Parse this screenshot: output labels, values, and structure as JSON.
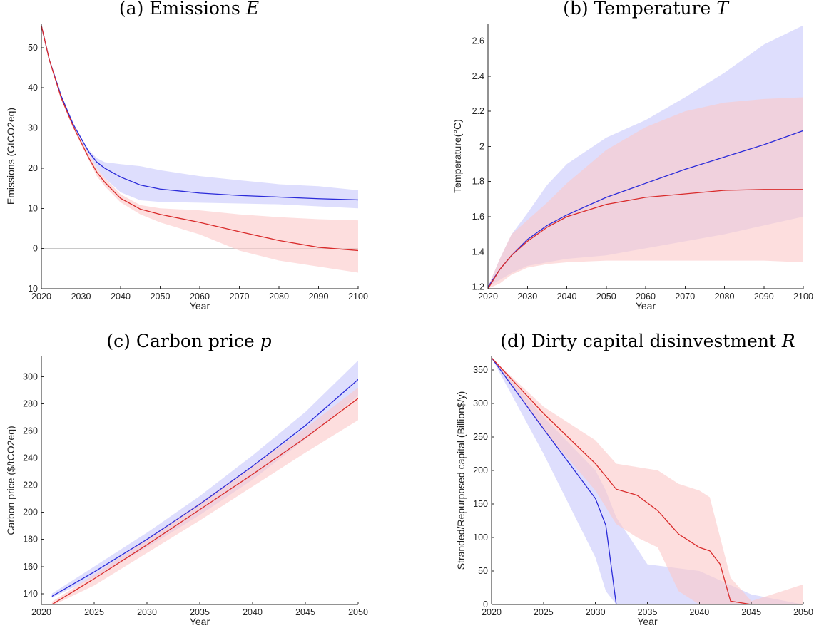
{
  "colors": {
    "series_a": "#2b2bd9",
    "series_b": "#d92b2b",
    "band_a": "#c9c9fb",
    "band_b": "#fbcaca"
  },
  "chart_data": [
    {
      "id": "a",
      "type": "line",
      "title_prefix": "(a) Emissions ",
      "title_symbol": "E",
      "xlabel": "Year",
      "ylabel": "Emissions (GtCO2eq)",
      "xlim": [
        2020,
        2100
      ],
      "ylim": [
        -10,
        56
      ],
      "xticks": [
        2020,
        2030,
        2040,
        2050,
        2060,
        2070,
        2080,
        2090,
        2100
      ],
      "yticks": [
        -10,
        0,
        10,
        20,
        30,
        40,
        50
      ],
      "zero_line": true,
      "series": [
        {
          "x": [
            2020,
            2022,
            2025,
            2028,
            2030,
            2032,
            2034,
            2036,
            2040,
            2045,
            2050,
            2060,
            2070,
            2080,
            2090,
            2100
          ],
          "y": [
            55.5,
            47,
            38,
            31,
            27.5,
            24,
            21.5,
            20,
            17.8,
            15.8,
            14.8,
            13.8,
            13.2,
            12.8,
            12.4,
            12.1
          ],
          "upper": [
            55.5,
            47,
            38,
            31,
            27.5,
            24.5,
            22.5,
            21.5,
            21,
            20.5,
            19.5,
            18,
            17,
            16,
            15.5,
            14.5
          ],
          "lower": [
            55.5,
            47,
            38,
            31,
            27,
            23.5,
            20,
            17.5,
            14,
            12,
            11.6,
            11.4,
            11.2,
            11,
            10.5,
            10
          ]
        },
        {
          "x": [
            2020,
            2022,
            2025,
            2028,
            2030,
            2032,
            2034,
            2036,
            2040,
            2045,
            2050,
            2060,
            2070,
            2080,
            2090,
            2100
          ],
          "y": [
            55.5,
            47,
            37.5,
            30.5,
            26.5,
            22.5,
            19,
            16.5,
            12.5,
            9.8,
            8.5,
            6.5,
            4.2,
            2,
            0.3,
            -0.5
          ],
          "upper": [
            55.5,
            47,
            37.8,
            31,
            27,
            23.5,
            20,
            17.5,
            13.5,
            10.8,
            10,
            9.5,
            8.5,
            7.8,
            7.3,
            7
          ],
          "lower": [
            55.5,
            47,
            37.2,
            30,
            26,
            22,
            18,
            15.5,
            11.5,
            8.5,
            6.5,
            3.5,
            -0.5,
            -3,
            -4.5,
            -6
          ]
        }
      ]
    },
    {
      "id": "b",
      "type": "line",
      "title_prefix": "(b) Temperature ",
      "title_symbol": "T",
      "xlabel": "Year",
      "ylabel": "Temperature(°C)",
      "xlim": [
        2020,
        2100
      ],
      "ylim": [
        1.19,
        2.7
      ],
      "xticks": [
        2020,
        2030,
        2040,
        2050,
        2060,
        2070,
        2080,
        2090,
        2100
      ],
      "yticks": [
        1.2,
        1.4,
        1.6,
        1.8,
        2,
        2.2,
        2.4,
        2.6
      ],
      "zero_line": false,
      "series": [
        {
          "x": [
            2020,
            2023,
            2026,
            2030,
            2035,
            2040,
            2050,
            2060,
            2070,
            2080,
            2090,
            2100
          ],
          "y": [
            1.2,
            1.3,
            1.38,
            1.47,
            1.55,
            1.61,
            1.71,
            1.79,
            1.87,
            1.94,
            2.01,
            2.09
          ],
          "upper": [
            1.2,
            1.36,
            1.5,
            1.62,
            1.78,
            1.9,
            2.05,
            2.15,
            2.28,
            2.42,
            2.58,
            2.69
          ],
          "lower": [
            1.2,
            1.24,
            1.28,
            1.32,
            1.34,
            1.36,
            1.38,
            1.42,
            1.46,
            1.5,
            1.55,
            1.6
          ]
        },
        {
          "x": [
            2020,
            2023,
            2026,
            2030,
            2035,
            2040,
            2050,
            2060,
            2070,
            2080,
            2090,
            2100
          ],
          "y": [
            1.19,
            1.3,
            1.38,
            1.46,
            1.54,
            1.6,
            1.67,
            1.71,
            1.73,
            1.75,
            1.755,
            1.755
          ],
          "upper": [
            1.2,
            1.36,
            1.5,
            1.58,
            1.68,
            1.79,
            1.98,
            2.11,
            2.2,
            2.25,
            2.27,
            2.28
          ],
          "lower": [
            1.19,
            1.22,
            1.27,
            1.31,
            1.33,
            1.34,
            1.35,
            1.35,
            1.35,
            1.35,
            1.35,
            1.34
          ]
        }
      ]
    },
    {
      "id": "c",
      "type": "line",
      "title_prefix": "(c) Carbon price ",
      "title_symbol": "p",
      "xlabel": "Year",
      "ylabel": "Carbon price ($/tCO2eq)",
      "xlim": [
        2020,
        2050
      ],
      "ylim": [
        132,
        315
      ],
      "xticks": [
        2020,
        2025,
        2030,
        2035,
        2040,
        2045,
        2050
      ],
      "yticks": [
        140,
        160,
        180,
        200,
        220,
        240,
        260,
        280,
        300
      ],
      "zero_line": false,
      "series": [
        {
          "x": [
            2021,
            2025,
            2030,
            2035,
            2040,
            2045,
            2050
          ],
          "y": [
            138,
            156,
            180,
            206,
            234,
            264,
            298
          ],
          "upper": [
            140,
            160,
            185,
            212,
            242,
            274,
            312
          ],
          "lower": [
            137,
            152,
            174,
            198,
            224,
            254,
            286
          ]
        },
        {
          "x": [
            2021,
            2025,
            2030,
            2035,
            2040,
            2045,
            2050
          ],
          "y": [
            132,
            151,
            176,
            202,
            228,
            255,
            284
          ],
          "upper": [
            134,
            154,
            180,
            207,
            234,
            262,
            292
          ],
          "lower": [
            131,
            146,
            170,
            194,
            219,
            244,
            268
          ]
        }
      ]
    },
    {
      "id": "d",
      "type": "line",
      "title_prefix": "(d) Dirty capital disinvestment ",
      "title_symbol": "R",
      "xlabel": "Year",
      "ylabel": "Stranded/Repurposed capital (Billion$/y)",
      "xlim": [
        2020,
        2050
      ],
      "ylim": [
        0,
        370
      ],
      "xticks": [
        2020,
        2025,
        2030,
        2035,
        2040,
        2045,
        2050
      ],
      "yticks": [
        0,
        50,
        100,
        150,
        200,
        250,
        300,
        350
      ],
      "zero_line": false,
      "series": [
        {
          "x": [
            2020,
            2025,
            2030,
            2031,
            2032,
            2035,
            2040,
            2045,
            2050
          ],
          "y": [
            368,
            262,
            158,
            118,
            0,
            0,
            0,
            0,
            0
          ],
          "upper": [
            368,
            280,
            200,
            170,
            130,
            60,
            50,
            15,
            0
          ],
          "lower": [
            368,
            225,
            70,
            20,
            0,
            0,
            0,
            0,
            0
          ]
        },
        {
          "x": [
            2020,
            2025,
            2030,
            2032,
            2034,
            2036,
            2038,
            2040,
            2041,
            2042,
            2043,
            2045,
            2050
          ],
          "y": [
            368,
            285,
            210,
            172,
            163,
            140,
            105,
            85,
            80,
            60,
            5,
            0,
            0
          ],
          "upper": [
            368,
            295,
            245,
            210,
            205,
            200,
            180,
            170,
            160,
            100,
            40,
            5,
            30
          ],
          "lower": [
            368,
            260,
            170,
            120,
            100,
            85,
            20,
            0,
            0,
            0,
            0,
            0,
            0
          ]
        }
      ]
    }
  ]
}
